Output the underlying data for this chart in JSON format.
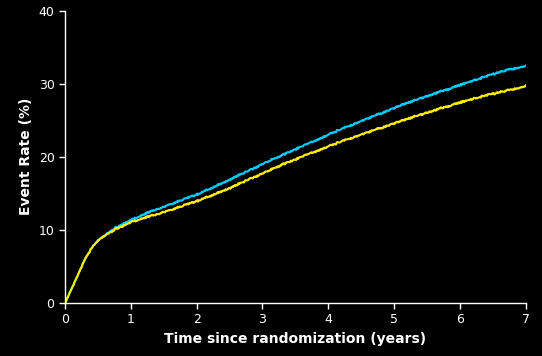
{
  "background_color": "#000000",
  "axes_facecolor": "#000000",
  "tick_color": "#cccccc",
  "label_color": "#ffffff",
  "grid": false,
  "xlabel": "Time since randomization (years)",
  "ylabel": "Event Rate (%)",
  "xlim": [
    0,
    7
  ],
  "ylim": [
    0,
    40
  ],
  "xticks": [
    0,
    1,
    2,
    3,
    4,
    5,
    6,
    7
  ],
  "yticks": [
    0,
    10,
    20,
    30,
    40
  ],
  "xlabel_fontsize": 10,
  "ylabel_fontsize": 10,
  "tick_fontsize": 9,
  "line_width": 1.5,
  "cyan_color": "#00ccff",
  "yellow_color": "#ffee00",
  "cyan_x": [
    0,
    0.02,
    0.04,
    0.06,
    0.08,
    0.1,
    0.12,
    0.14,
    0.16,
    0.18,
    0.2,
    0.22,
    0.24,
    0.26,
    0.28,
    0.3,
    0.32,
    0.34,
    0.36,
    0.38,
    0.4,
    0.42,
    0.44,
    0.46,
    0.48,
    0.5,
    0.55,
    0.6,
    0.65,
    0.7,
    0.75,
    0.8,
    0.85,
    0.9,
    0.95,
    1.0,
    1.05,
    1.1,
    1.15,
    1.2,
    1.25,
    1.3,
    1.35,
    1.4,
    1.45,
    1.5,
    1.55,
    1.6,
    1.65,
    1.7,
    1.75,
    1.8,
    1.85,
    1.9,
    1.95,
    2.0,
    2.1,
    2.2,
    2.3,
    2.4,
    2.5,
    2.6,
    2.7,
    2.8,
    2.9,
    3.0,
    3.1,
    3.2,
    3.3,
    3.4,
    3.5,
    3.6,
    3.7,
    3.8,
    3.9,
    4.0,
    4.1,
    4.2,
    4.3,
    4.4,
    4.5,
    4.6,
    4.7,
    4.8,
    4.9,
    5.0,
    5.1,
    5.2,
    5.3,
    5.4,
    5.5,
    5.6,
    5.7,
    5.8,
    5.9,
    6.0,
    6.1,
    6.2,
    6.3,
    6.4,
    6.5,
    6.6,
    6.7,
    6.8,
    6.9,
    7.0
  ],
  "cyan_y": [
    0,
    0.3,
    0.7,
    1.1,
    1.5,
    1.9,
    2.3,
    2.7,
    3.1,
    3.5,
    3.9,
    4.3,
    4.7,
    5.1,
    5.5,
    5.9,
    6.2,
    6.5,
    6.8,
    7.1,
    7.4,
    7.65,
    7.9,
    8.1,
    8.3,
    8.55,
    8.9,
    9.2,
    9.55,
    9.85,
    10.15,
    10.4,
    10.65,
    10.9,
    11.1,
    11.3,
    11.5,
    11.7,
    11.9,
    12.1,
    12.3,
    12.5,
    12.65,
    12.8,
    12.95,
    13.1,
    13.3,
    13.5,
    13.65,
    13.8,
    14.0,
    14.15,
    14.3,
    14.5,
    14.65,
    14.8,
    15.2,
    15.6,
    16.0,
    16.4,
    16.85,
    17.3,
    17.7,
    18.1,
    18.55,
    19.0,
    19.4,
    19.8,
    20.2,
    20.6,
    21.0,
    21.4,
    21.8,
    22.2,
    22.6,
    23.0,
    23.4,
    23.8,
    24.15,
    24.5,
    24.9,
    25.25,
    25.6,
    25.95,
    26.3,
    26.65,
    27.0,
    27.35,
    27.65,
    28.0,
    28.3,
    28.6,
    28.9,
    29.2,
    29.5,
    29.8,
    30.1,
    30.4,
    30.7,
    31.0,
    31.3,
    31.55,
    31.8,
    32.0,
    32.2,
    32.35,
    32.5
  ],
  "yellow_x": [
    0,
    0.02,
    0.04,
    0.06,
    0.08,
    0.1,
    0.12,
    0.14,
    0.16,
    0.18,
    0.2,
    0.22,
    0.24,
    0.26,
    0.28,
    0.3,
    0.32,
    0.34,
    0.36,
    0.38,
    0.4,
    0.42,
    0.44,
    0.46,
    0.48,
    0.5,
    0.55,
    0.6,
    0.65,
    0.7,
    0.75,
    0.8,
    0.85,
    0.9,
    0.95,
    1.0,
    1.05,
    1.1,
    1.15,
    1.2,
    1.25,
    1.3,
    1.35,
    1.4,
    1.45,
    1.5,
    1.55,
    1.6,
    1.65,
    1.7,
    1.75,
    1.8,
    1.85,
    1.9,
    1.95,
    2.0,
    2.1,
    2.2,
    2.3,
    2.4,
    2.5,
    2.6,
    2.7,
    2.8,
    2.9,
    3.0,
    3.1,
    3.2,
    3.3,
    3.4,
    3.5,
    3.6,
    3.7,
    3.8,
    3.9,
    4.0,
    4.1,
    4.2,
    4.3,
    4.4,
    4.5,
    4.6,
    4.7,
    4.8,
    4.9,
    5.0,
    5.1,
    5.2,
    5.3,
    5.4,
    5.5,
    5.6,
    5.7,
    5.8,
    5.9,
    6.0,
    6.1,
    6.2,
    6.3,
    6.4,
    6.5,
    6.6,
    6.7,
    6.8,
    6.9,
    7.0
  ],
  "yellow_y": [
    0,
    0.3,
    0.7,
    1.1,
    1.5,
    1.9,
    2.3,
    2.7,
    3.1,
    3.5,
    3.9,
    4.3,
    4.7,
    5.1,
    5.5,
    5.9,
    6.2,
    6.5,
    6.8,
    7.1,
    7.4,
    7.65,
    7.9,
    8.1,
    8.3,
    8.55,
    8.85,
    9.15,
    9.45,
    9.7,
    9.95,
    10.2,
    10.4,
    10.6,
    10.8,
    11.0,
    11.15,
    11.3,
    11.45,
    11.6,
    11.75,
    11.9,
    12.0,
    12.1,
    12.25,
    12.4,
    12.55,
    12.7,
    12.85,
    13.0,
    13.15,
    13.3,
    13.45,
    13.6,
    13.75,
    13.9,
    14.25,
    14.6,
    14.95,
    15.3,
    15.7,
    16.1,
    16.5,
    16.9,
    17.3,
    17.7,
    18.1,
    18.5,
    18.9,
    19.25,
    19.6,
    20.0,
    20.35,
    20.7,
    21.05,
    21.4,
    21.75,
    22.1,
    22.4,
    22.7,
    23.05,
    23.35,
    23.65,
    23.95,
    24.25,
    24.55,
    24.85,
    25.15,
    25.45,
    25.75,
    26.05,
    26.3,
    26.6,
    26.85,
    27.15,
    27.4,
    27.65,
    27.9,
    28.15,
    28.4,
    28.6,
    28.8,
    29.0,
    29.2,
    29.4,
    29.6,
    29.8
  ]
}
